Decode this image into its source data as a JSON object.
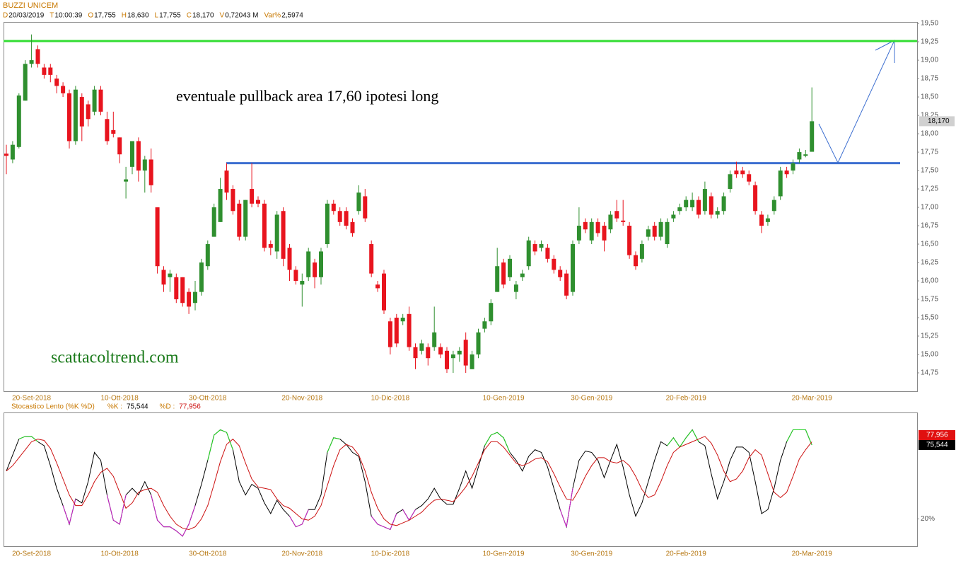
{
  "header": {
    "title": "BUZZI UNICEM",
    "fields": [
      {
        "label": "D",
        "value": "20/03/2019"
      },
      {
        "label": "T",
        "value": "10:00:39"
      },
      {
        "label": "O",
        "value": "17,755"
      },
      {
        "label": "H",
        "value": "18,630"
      },
      {
        "label": "L",
        "value": "17,755"
      },
      {
        "label": "C",
        "value": "18,170"
      },
      {
        "label": "V",
        "value": "0,72043 M"
      },
      {
        "label": "Var%",
        "value": "2,5974"
      }
    ]
  },
  "chart_data": [
    {
      "type": "candlestick",
      "categories": [
        null,
        null,
        null,
        null,
        "20-Set-2018",
        null,
        null,
        null,
        null,
        null,
        null,
        null,
        null,
        null,
        null,
        null,
        null,
        null,
        "10-Ott-2018",
        null,
        null,
        null,
        null,
        null,
        null,
        null,
        null,
        null,
        null,
        null,
        null,
        null,
        "30-Ott-2018",
        null,
        null,
        null,
        null,
        null,
        null,
        null,
        null,
        null,
        null,
        null,
        null,
        null,
        null,
        "20-Nov-2018",
        null,
        null,
        null,
        null,
        null,
        null,
        null,
        null,
        null,
        null,
        null,
        null,
        null,
        "10-Dic-2018",
        null,
        null,
        null,
        null,
        null,
        null,
        null,
        null,
        null,
        null,
        null,
        null,
        null,
        null,
        null,
        null,
        null,
        "10-Gen-2019",
        null,
        null,
        null,
        null,
        null,
        null,
        null,
        null,
        null,
        null,
        null,
        null,
        null,
        "30-Gen-2019",
        null,
        null,
        null,
        null,
        null,
        null,
        null,
        null,
        null,
        null,
        null,
        null,
        null,
        null,
        "20-Feb-2019",
        null,
        null,
        null,
        null,
        null,
        null,
        null,
        null,
        null,
        null,
        null,
        null,
        null,
        null,
        null,
        null,
        null,
        null,
        null,
        "20-Mar-2019"
      ],
      "open": [
        17.73,
        17.65,
        17.82,
        18.45,
        18.95,
        19.15,
        18.9,
        18.9,
        18.75,
        18.65,
        18.55,
        17.9,
        18.5,
        18.4,
        18.3,
        18.6,
        18.2,
        18.05,
        17.95,
        17.35,
        17.55,
        17.9,
        17.5,
        17.65,
        17.0,
        16.15,
        16.05,
        16.05,
        16.05,
        15.85,
        15.7,
        15.85,
        16.2,
        16.6,
        16.8,
        17.5,
        17.25,
        17.05,
        16.6,
        17.25,
        17.1,
        17.05,
        16.5,
        16.4,
        16.95,
        16.45,
        16.15,
        15.95,
        16.05,
        16.25,
        16.05,
        16.5,
        17.05,
        16.95,
        16.95,
        16.8,
        16.95,
        17.15,
        16.5,
        15.95,
        16.1,
        15.45,
        15.5,
        15.45,
        15.55,
        15.1,
        15.05,
        15.1,
        15.1,
        15.1,
        15.05,
        14.95,
        15.0,
        15.2,
        14.8,
        15.0,
        15.35,
        15.45,
        15.85,
        16.25,
        16.05,
        15.85,
        16.05,
        16.2,
        16.5,
        16.45,
        16.45,
        16.3,
        16.15,
        16.1,
        15.85,
        16.55,
        16.8,
        16.55,
        16.8,
        16.75,
        16.7,
        16.95,
        16.82,
        16.75,
        16.35,
        16.3,
        16.6,
        16.75,
        16.6,
        16.5,
        16.85,
        16.95,
        17.0,
        17.0,
        17.1,
        16.95,
        17.15,
        16.9,
        16.95,
        17.25,
        17.5,
        17.5,
        17.45,
        17.3,
        16.9,
        16.8,
        16.95,
        17.15,
        17.5,
        17.5,
        17.65,
        17.7,
        17.755
      ],
      "high": [
        17.85,
        17.9,
        18.55,
        19.0,
        19.35,
        19.2,
        18.95,
        18.95,
        18.8,
        18.7,
        18.6,
        18.65,
        18.55,
        18.45,
        18.65,
        18.65,
        18.3,
        18.3,
        17.95,
        17.55,
        17.9,
        17.95,
        17.7,
        17.8,
        17.0,
        16.2,
        16.15,
        16.1,
        16.05,
        15.9,
        16.0,
        16.3,
        16.55,
        17.05,
        17.4,
        17.6,
        17.3,
        17.1,
        17.1,
        17.6,
        17.15,
        17.1,
        16.55,
        16.95,
        17.0,
        16.5,
        16.2,
        16.1,
        16.45,
        16.3,
        16.45,
        17.1,
        17.1,
        17.0,
        17.0,
        16.85,
        17.3,
        17.25,
        16.55,
        16.0,
        16.15,
        15.5,
        15.55,
        15.55,
        15.65,
        15.15,
        15.2,
        15.15,
        15.65,
        15.15,
        15.1,
        15.05,
        15.1,
        15.3,
        15.05,
        15.35,
        15.5,
        15.75,
        16.45,
        16.3,
        16.35,
        16.0,
        16.15,
        16.6,
        16.55,
        16.55,
        16.5,
        16.35,
        16.2,
        16.15,
        16.55,
        17.0,
        16.85,
        16.85,
        16.85,
        16.8,
        16.95,
        17.1,
        17.1,
        16.8,
        16.4,
        16.55,
        16.75,
        16.8,
        16.85,
        16.85,
        16.95,
        17.05,
        17.15,
        17.2,
        17.15,
        17.35,
        17.2,
        17.0,
        17.2,
        17.5,
        17.62,
        17.55,
        17.5,
        17.35,
        16.95,
        16.9,
        17.15,
        17.55,
        17.55,
        17.65,
        17.8,
        17.78,
        18.63
      ],
      "low": [
        17.45,
        17.6,
        17.8,
        18.45,
        18.9,
        18.9,
        18.75,
        18.7,
        18.55,
        18.5,
        17.8,
        17.85,
        17.9,
        18.1,
        18.25,
        18.25,
        17.85,
        17.95,
        17.6,
        17.12,
        17.45,
        17.35,
        17.2,
        17.2,
        16.1,
        15.85,
        15.85,
        15.7,
        15.65,
        15.55,
        15.6,
        15.8,
        16.15,
        16.6,
        16.8,
        17.1,
        16.9,
        16.55,
        16.55,
        17.0,
        17.0,
        16.4,
        16.35,
        16.3,
        16.2,
        16.0,
        15.95,
        15.65,
        16.0,
        15.9,
        15.95,
        16.45,
        16.9,
        16.75,
        16.7,
        16.6,
        16.9,
        16.8,
        16.05,
        15.85,
        15.55,
        15.0,
        15.1,
        15.4,
        15.05,
        14.8,
        15.0,
        14.85,
        15.05,
        14.95,
        14.75,
        14.75,
        14.9,
        14.75,
        14.8,
        14.95,
        15.3,
        15.4,
        15.85,
        15.9,
        16.0,
        15.75,
        16.0,
        16.15,
        16.35,
        16.4,
        16.25,
        16.1,
        16.0,
        15.75,
        15.8,
        16.5,
        16.65,
        16.5,
        16.6,
        16.4,
        16.65,
        16.8,
        16.75,
        16.3,
        16.15,
        16.25,
        16.55,
        16.55,
        16.55,
        16.45,
        16.8,
        16.9,
        16.95,
        16.95,
        16.85,
        16.9,
        16.85,
        16.85,
        16.9,
        17.2,
        17.4,
        17.4,
        17.3,
        16.9,
        16.65,
        16.75,
        16.9,
        17.1,
        17.4,
        17.45,
        17.6,
        17.68,
        17.755
      ],
      "close": [
        17.7,
        17.85,
        18.52,
        18.95,
        19.0,
        18.95,
        18.8,
        18.8,
        18.65,
        18.55,
        17.9,
        18.6,
        18.1,
        18.2,
        18.6,
        18.3,
        17.9,
        18.0,
        17.72,
        17.38,
        17.9,
        17.5,
        17.65,
        17.3,
        16.2,
        15.95,
        16.1,
        15.75,
        15.7,
        15.65,
        15.85,
        16.25,
        16.5,
        17.0,
        17.25,
        17.2,
        16.95,
        16.6,
        17.1,
        17.05,
        17.05,
        16.45,
        16.45,
        16.9,
        16.3,
        16.15,
        16.0,
        16.0,
        16.4,
        16.05,
        16.4,
        17.05,
        16.95,
        16.8,
        16.75,
        16.65,
        17.2,
        16.85,
        16.1,
        15.9,
        15.6,
        15.1,
        15.15,
        15.5,
        15.1,
        14.95,
        15.15,
        14.95,
        15.3,
        15.0,
        14.8,
        15.0,
        15.05,
        14.85,
        15.0,
        15.3,
        15.45,
        15.7,
        16.2,
        15.95,
        16.3,
        15.95,
        16.1,
        16.55,
        16.4,
        16.5,
        16.3,
        16.15,
        16.05,
        15.8,
        16.5,
        16.75,
        16.7,
        16.8,
        16.65,
        16.55,
        16.9,
        16.85,
        16.8,
        16.35,
        16.2,
        16.5,
        16.7,
        16.6,
        16.8,
        16.8,
        16.9,
        17.0,
        17.1,
        17.1,
        16.9,
        17.25,
        16.9,
        16.95,
        17.15,
        17.45,
        17.45,
        17.45,
        17.35,
        16.95,
        16.75,
        16.85,
        17.1,
        17.5,
        17.45,
        17.6,
        17.75,
        17.72,
        18.17
      ],
      "up_color": "#2f8f2f",
      "down_color": "#e8141e",
      "ylim": [
        14.5,
        19.52
      ],
      "yticks": [
        {
          "value": 14.75,
          "label": "14,75"
        },
        {
          "value": 15,
          "label": "15,00"
        },
        {
          "value": 15.25,
          "label": "15,25"
        },
        {
          "value": 15.5,
          "label": "15,50"
        },
        {
          "value": 15.75,
          "label": "15,75"
        },
        {
          "value": 16,
          "label": "16,00"
        },
        {
          "value": 16.25,
          "label": "16,25"
        },
        {
          "value": 16.5,
          "label": "16,50"
        },
        {
          "value": 16.75,
          "label": "16,75"
        },
        {
          "value": 17,
          "label": "17,00"
        },
        {
          "value": 17.25,
          "label": "17,25"
        },
        {
          "value": 17.5,
          "label": "17,50"
        },
        {
          "value": 17.75,
          "label": "17,75"
        },
        {
          "value": 18,
          "label": "18,00"
        },
        {
          "value": 18.25,
          "label": "18,25"
        },
        {
          "value": 18.5,
          "label": "18,50"
        },
        {
          "value": 18.75,
          "label": "18,75"
        },
        {
          "value": 19,
          "label": "19,00"
        },
        {
          "value": 19.25,
          "label": "19,25"
        },
        {
          "value": 19.5,
          "label": "19,50"
        }
      ],
      "grid": false,
      "last_price": {
        "value": 18.17,
        "label": "18,170"
      },
      "hlines": [
        {
          "value": 19.26,
          "color": "#33dd33"
        },
        {
          "value": 17.6,
          "color": "#3d6fd0"
        }
      ],
      "annotations": [
        "eventuale pullback area 17,60 ipotesi long",
        "scattacoltrend.com"
      ]
    },
    {
      "type": "line",
      "title": "Stocastico Lento (%K %D)",
      "categories": [
        null,
        null,
        null,
        null,
        "20-Set-2018",
        null,
        null,
        null,
        null,
        null,
        null,
        null,
        null,
        null,
        null,
        null,
        null,
        null,
        "10-Ott-2018",
        null,
        null,
        null,
        null,
        null,
        null,
        null,
        null,
        null,
        null,
        null,
        null,
        null,
        "30-Ott-2018",
        null,
        null,
        null,
        null,
        null,
        null,
        null,
        null,
        null,
        null,
        null,
        null,
        null,
        null,
        "20-Nov-2018",
        null,
        null,
        null,
        null,
        null,
        null,
        null,
        null,
        null,
        null,
        null,
        null,
        null,
        "10-Dic-2018",
        null,
        null,
        null,
        null,
        null,
        null,
        null,
        null,
        null,
        null,
        null,
        null,
        null,
        null,
        null,
        null,
        null,
        "10-Gen-2019",
        null,
        null,
        null,
        null,
        null,
        null,
        null,
        null,
        null,
        null,
        null,
        null,
        null,
        "30-Gen-2019",
        null,
        null,
        null,
        null,
        null,
        null,
        null,
        null,
        null,
        null,
        null,
        null,
        null,
        null,
        "20-Feb-2019",
        null,
        null,
        null,
        null,
        null,
        null,
        null,
        null,
        null,
        null,
        null,
        null,
        null,
        null,
        null,
        null,
        null,
        null,
        null,
        "20-Mar-2019"
      ],
      "ylim": [
        0,
        100
      ],
      "yticks": [
        {
          "value": 20,
          "label": "20%"
        }
      ],
      "overbought": {
        "level": 80,
        "color": "#22dd22"
      },
      "oversold": {
        "level": 20,
        "color": "#cc22cc"
      },
      "series": [
        {
          "name": "%K :",
          "value_label": "75,544",
          "color": "#000000",
          "values": [
            56,
            68,
            80,
            82,
            82,
            78,
            75,
            60,
            43,
            30,
            16,
            35,
            32,
            48,
            70,
            64,
            38,
            19,
            16,
            38,
            43,
            38,
            48,
            38,
            19,
            14,
            14,
            11,
            7,
            16,
            30,
            46,
            64,
            83,
            87,
            85,
            72,
            48,
            38,
            46,
            43,
            32,
            24,
            34,
            27,
            22,
            14,
            16,
            27,
            27,
            38,
            70,
            81,
            80,
            76,
            70,
            67,
            48,
            22,
            16,
            14,
            12,
            24,
            27,
            19,
            27,
            30,
            35,
            43,
            35,
            31,
            31,
            43,
            56,
            43,
            59,
            75,
            83,
            85,
            81,
            70,
            64,
            56,
            67,
            72,
            70,
            59,
            43,
            27,
            14,
            43,
            64,
            71,
            70,
            64,
            51,
            64,
            76,
            59,
            38,
            22,
            32,
            48,
            64,
            78,
            75,
            81,
            74,
            81,
            87,
            78,
            75,
            54,
            35,
            48,
            64,
            74,
            74,
            70,
            48,
            24,
            27,
            43,
            64,
            78,
            87,
            87,
            87,
            75.544
          ]
        },
        {
          "name": "%D :",
          "value_label": "77,956",
          "color": "#cc1010",
          "values": [
            56,
            60,
            66,
            72,
            78,
            80,
            79,
            73,
            62,
            50,
            38,
            30,
            30,
            38,
            48,
            55,
            58,
            52,
            40,
            28,
            32,
            40,
            42,
            43,
            40,
            30,
            22,
            16,
            13,
            12,
            14,
            20,
            30,
            46,
            63,
            76,
            80,
            75,
            62,
            50,
            44,
            43,
            42,
            35,
            30,
            28,
            24,
            20,
            19,
            22,
            30,
            45,
            60,
            72,
            76,
            74,
            68,
            56,
            40,
            28,
            20,
            16,
            15,
            17,
            19,
            22,
            25,
            30,
            34,
            35,
            34,
            33,
            38,
            44,
            52,
            62,
            72,
            78,
            78,
            74,
            68,
            62,
            60,
            62,
            65,
            66,
            63,
            54,
            44,
            35,
            34,
            42,
            52,
            60,
            66,
            66,
            63,
            62,
            64,
            60,
            52,
            42,
            36,
            38,
            48,
            60,
            70,
            74,
            76,
            78,
            80,
            82,
            77,
            68,
            56,
            48,
            50,
            56,
            66,
            72,
            68,
            54,
            40,
            36,
            40,
            52,
            65,
            72,
            77.956
          ]
        }
      ]
    }
  ]
}
